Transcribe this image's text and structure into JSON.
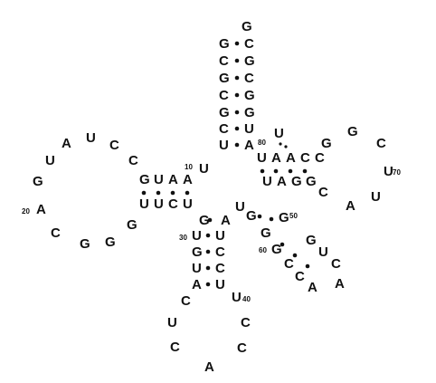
{
  "diagram": {
    "nucleotides": [
      "G",
      "G",
      "C",
      "C",
      "G",
      "G",
      "C",
      "C",
      "G",
      "G",
      "G",
      "C",
      "U",
      "U",
      "A",
      "U",
      "A",
      "A",
      "U",
      "G",
      "C",
      "C",
      "U",
      "A",
      "U",
      "G",
      "A",
      "C",
      "G",
      "G",
      "G",
      "U",
      "U",
      "C",
      "U",
      "G",
      "U",
      "G",
      "U",
      "A",
      "C",
      "U",
      "C",
      "A",
      "C",
      "C",
      "U",
      "U",
      "C",
      "C",
      "U",
      "A",
      "U",
      "U",
      "A",
      "A",
      "C",
      "C",
      "G",
      "G",
      "C",
      "U",
      "U",
      "A",
      "C",
      "G",
      "G",
      "A",
      "U",
      "U",
      "G",
      "G",
      "G",
      "C",
      "C",
      "A",
      "A",
      "C",
      "U",
      "G",
      "G"
    ],
    "position_labels": [
      {
        "text": "10"
      },
      {
        "text": "20"
      },
      {
        "text": "30"
      },
      {
        "text": "40"
      },
      {
        "text": "50"
      },
      {
        "text": "60"
      },
      {
        "text": "70"
      },
      {
        "text": "80"
      }
    ],
    "colors": {
      "ink": "#111111",
      "background": "#ffffff"
    }
  }
}
